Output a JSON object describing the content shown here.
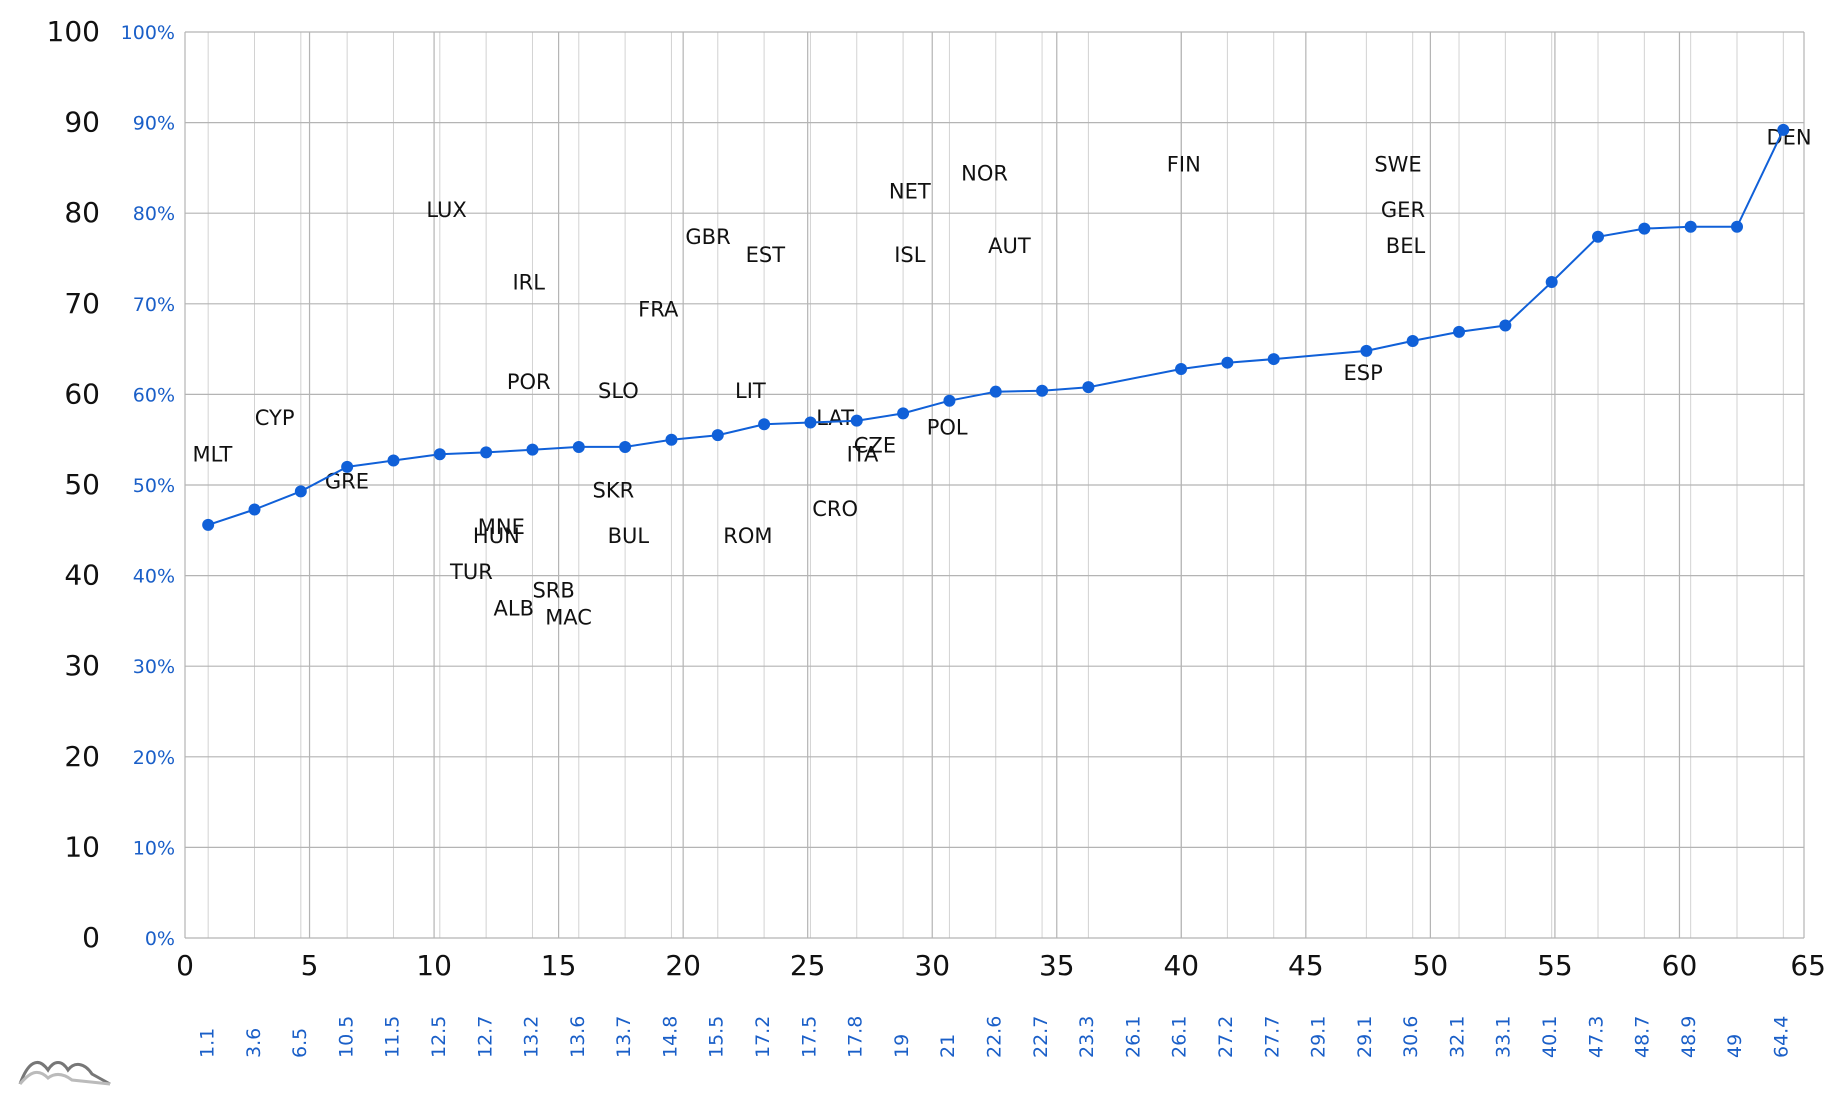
{
  "chart_data": {
    "type": "line",
    "title": "",
    "xlabel": "",
    "ylabel": "",
    "xlim": [
      0,
      65
    ],
    "ylim": [
      0,
      100
    ],
    "grid": true,
    "colors": {
      "line": "#1060d8",
      "point": "#1060d8",
      "grid_major": "#b4b4b4",
      "grid_minor": "#d2d2d2",
      "secondary_label": "#1a5fc8"
    },
    "x_ticks": [
      "0",
      "5",
      "10",
      "15",
      "20",
      "25",
      "30",
      "35",
      "40",
      "45",
      "50",
      "55",
      "60",
      "65"
    ],
    "y_ticks": [
      "0",
      "10",
      "20",
      "30",
      "40",
      "50",
      "60",
      "70",
      "80",
      "90",
      "100"
    ],
    "y_ticks_percent": [
      "0%",
      "10%",
      "20%",
      "30%",
      "40%",
      "50%",
      "60%",
      "70%",
      "80%",
      "90%",
      "100%"
    ],
    "x_ticks_secondary": [
      "1.1",
      "3.6",
      "6.5",
      "10.5",
      "11.5",
      "12.5",
      "12.7",
      "13.2",
      "13.6",
      "13.7",
      "14.8",
      "15.5",
      "17.2",
      "17.5",
      "17.8",
      "19",
      "21",
      "22.6",
      "22.7",
      "23.3",
      "26.1",
      "26.1",
      "27.2",
      "27.7",
      "29.1",
      "29.1",
      "30.6",
      "32.1",
      "33.1",
      "40.1",
      "47.3",
      "48.7",
      "48.9",
      "49",
      "64.4"
    ],
    "series": [
      {
        "x": [
          0.93,
          2.79,
          4.65,
          6.51,
          8.37,
          10.23,
          12.09,
          13.95,
          15.81,
          17.67,
          19.53,
          21.39,
          23.25,
          25.11,
          26.97,
          28.83,
          30.69,
          32.55,
          34.41,
          36.27,
          39.99,
          41.85,
          43.71,
          47.43,
          49.29,
          51.15,
          53.01,
          54.87,
          56.73,
          58.59,
          60.45,
          62.31,
          64.17
        ],
        "y": [
          45.6,
          47.3,
          49.3,
          52.0,
          52.7,
          53.4,
          53.6,
          53.9,
          54.2,
          54.2,
          55.0,
          55.5,
          56.7,
          56.9,
          57.1,
          57.9,
          59.3,
          60.3,
          60.4,
          60.8,
          62.8,
          63.5,
          63.9,
          64.8,
          65.9,
          66.9,
          67.6,
          72.4,
          77.4,
          78.3,
          78.5,
          78.5,
          89.2
        ]
      }
    ],
    "annotations": [
      {
        "text": "MLT",
        "x": 1.1,
        "y": 52.6
      },
      {
        "text": "CYP",
        "x": 3.6,
        "y": 56.6
      },
      {
        "text": "GRE",
        "x": 6.5,
        "y": 49.6
      },
      {
        "text": "LUX",
        "x": 10.5,
        "y": 79.6
      },
      {
        "text": "IRL",
        "x": 13.8,
        "y": 71.6
      },
      {
        "text": "POR",
        "x": 13.8,
        "y": 60.6
      },
      {
        "text": "MNE",
        "x": 12.7,
        "y": 44.6
      },
      {
        "text": "HUN",
        "x": 12.5,
        "y": 43.6
      },
      {
        "text": "TUR",
        "x": 11.5,
        "y": 39.6
      },
      {
        "text": "ALB",
        "x": 13.2,
        "y": 35.6
      },
      {
        "text": "SRB",
        "x": 14.8,
        "y": 37.6
      },
      {
        "text": "MAC",
        "x": 15.4,
        "y": 34.6
      },
      {
        "text": "SLO",
        "x": 17.4,
        "y": 59.6
      },
      {
        "text": "SKR",
        "x": 17.2,
        "y": 48.6
      },
      {
        "text": "BUL",
        "x": 17.8,
        "y": 43.6
      },
      {
        "text": "FRA",
        "x": 19.0,
        "y": 68.6
      },
      {
        "text": "GBR",
        "x": 21.0,
        "y": 76.6
      },
      {
        "text": "EST",
        "x": 23.3,
        "y": 74.6
      },
      {
        "text": "LIT",
        "x": 22.7,
        "y": 59.6
      },
      {
        "text": "ROM",
        "x": 22.6,
        "y": 43.6
      },
      {
        "text": "CRO",
        "x": 26.1,
        "y": 46.6
      },
      {
        "text": "LAT",
        "x": 26.1,
        "y": 56.6
      },
      {
        "text": "CZE",
        "x": 27.7,
        "y": 53.6
      },
      {
        "text": "ITA",
        "x": 27.2,
        "y": 52.6
      },
      {
        "text": "NET",
        "x": 29.1,
        "y": 81.6
      },
      {
        "text": "ISL",
        "x": 29.1,
        "y": 74.6
      },
      {
        "text": "POL",
        "x": 30.6,
        "y": 55.6
      },
      {
        "text": "NOR",
        "x": 32.1,
        "y": 83.6
      },
      {
        "text": "AUT",
        "x": 33.1,
        "y": 75.6
      },
      {
        "text": "FIN",
        "x": 40.1,
        "y": 84.6
      },
      {
        "text": "ESP",
        "x": 47.3,
        "y": 61.6
      },
      {
        "text": "SWE",
        "x": 48.7,
        "y": 84.6
      },
      {
        "text": "GER",
        "x": 48.9,
        "y": 79.6
      },
      {
        "text": "BEL",
        "x": 49.0,
        "y": 75.6
      },
      {
        "text": "DEN",
        "x": 64.4,
        "y": 87.6
      }
    ]
  }
}
